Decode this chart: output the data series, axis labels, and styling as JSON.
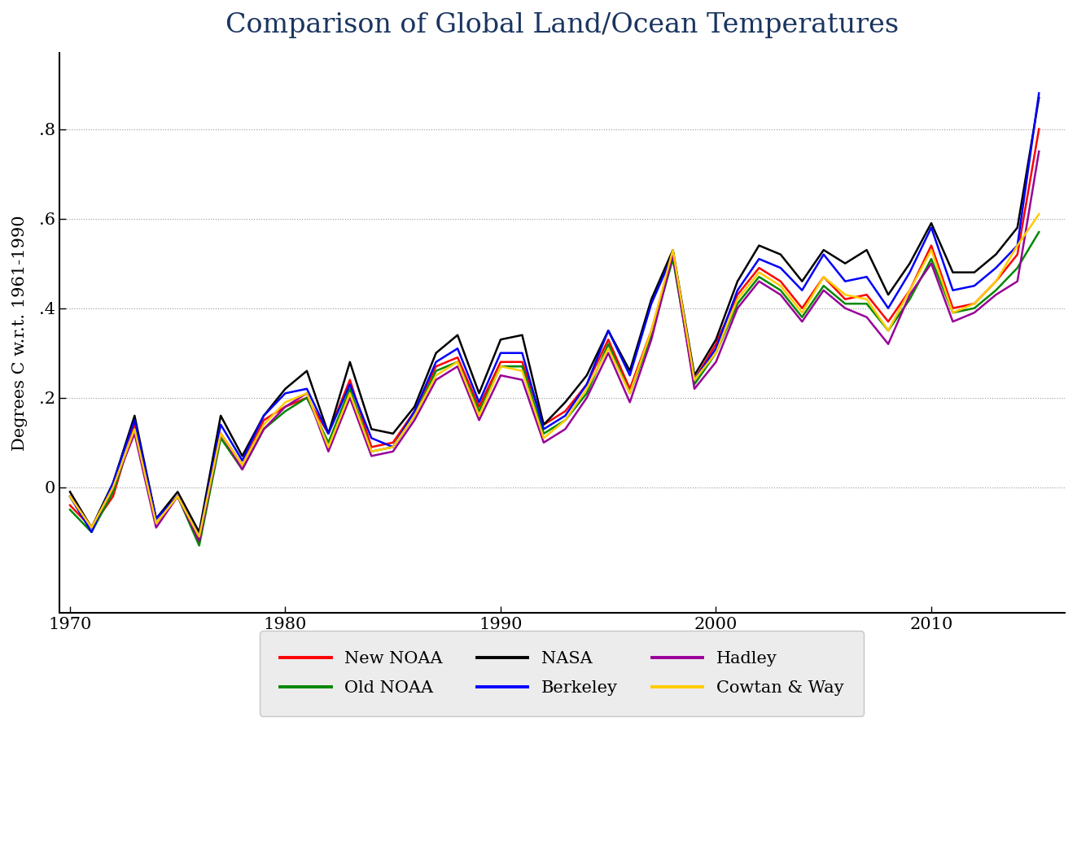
{
  "title": "Comparison of Global Land/Ocean Temperatures",
  "ylabel": "Degrees C w.r.t. 1961-1990",
  "years": [
    1970,
    1971,
    1972,
    1973,
    1974,
    1975,
    1976,
    1977,
    1978,
    1979,
    1980,
    1981,
    1982,
    1983,
    1984,
    1985,
    1986,
    1987,
    1988,
    1989,
    1990,
    1991,
    1992,
    1993,
    1994,
    1995,
    1996,
    1997,
    1998,
    1999,
    2000,
    2001,
    2002,
    2003,
    2004,
    2005,
    2006,
    2007,
    2008,
    2009,
    2010,
    2011,
    2012,
    2013,
    2014,
    2015
  ],
  "new_noaa": [
    -0.04,
    -0.09,
    -0.02,
    0.14,
    -0.07,
    -0.02,
    -0.12,
    0.12,
    0.05,
    0.15,
    0.18,
    0.2,
    0.12,
    0.24,
    0.09,
    0.1,
    0.17,
    0.27,
    0.29,
    0.18,
    0.28,
    0.28,
    0.14,
    0.17,
    0.23,
    0.33,
    0.22,
    0.35,
    0.52,
    0.24,
    0.32,
    0.43,
    0.49,
    0.46,
    0.4,
    0.47,
    0.42,
    0.43,
    0.37,
    0.44,
    0.54,
    0.4,
    0.41,
    0.46,
    0.52,
    0.8
  ],
  "old_noaa": [
    -0.05,
    -0.1,
    -0.01,
    0.13,
    -0.08,
    -0.02,
    -0.13,
    0.11,
    0.04,
    0.13,
    0.17,
    0.2,
    0.1,
    0.22,
    0.08,
    0.09,
    0.16,
    0.26,
    0.28,
    0.17,
    0.27,
    0.27,
    0.12,
    0.15,
    0.21,
    0.32,
    0.21,
    0.34,
    0.51,
    0.23,
    0.3,
    0.41,
    0.47,
    0.44,
    0.38,
    0.45,
    0.41,
    0.41,
    0.35,
    0.42,
    0.51,
    0.39,
    0.4,
    0.44,
    0.49,
    0.57
  ],
  "nasa": [
    -0.01,
    -0.09,
    0.01,
    0.16,
    -0.07,
    -0.01,
    -0.1,
    0.16,
    0.07,
    0.16,
    0.22,
    0.26,
    0.12,
    0.28,
    0.13,
    0.12,
    0.18,
    0.3,
    0.34,
    0.21,
    0.33,
    0.34,
    0.14,
    0.19,
    0.25,
    0.35,
    0.26,
    0.42,
    0.53,
    0.25,
    0.33,
    0.46,
    0.54,
    0.52,
    0.46,
    0.53,
    0.5,
    0.53,
    0.43,
    0.5,
    0.59,
    0.48,
    0.48,
    0.52,
    0.58,
    0.87
  ],
  "berkeley": [
    -0.02,
    -0.1,
    0.01,
    0.15,
    -0.07,
    -0.02,
    -0.11,
    0.14,
    0.06,
    0.16,
    0.21,
    0.22,
    0.12,
    0.23,
    0.11,
    0.09,
    0.17,
    0.28,
    0.31,
    0.19,
    0.3,
    0.3,
    0.13,
    0.16,
    0.23,
    0.35,
    0.25,
    0.41,
    0.52,
    0.24,
    0.31,
    0.44,
    0.51,
    0.49,
    0.44,
    0.52,
    0.46,
    0.47,
    0.4,
    0.48,
    0.58,
    0.44,
    0.45,
    0.49,
    0.54,
    0.88
  ],
  "hadley": [
    -0.02,
    -0.09,
    0.0,
    0.12,
    -0.09,
    -0.02,
    -0.12,
    0.12,
    0.04,
    0.13,
    0.18,
    0.21,
    0.08,
    0.2,
    0.07,
    0.08,
    0.15,
    0.24,
    0.27,
    0.15,
    0.25,
    0.24,
    0.1,
    0.13,
    0.2,
    0.3,
    0.19,
    0.33,
    0.52,
    0.22,
    0.28,
    0.4,
    0.46,
    0.43,
    0.37,
    0.44,
    0.4,
    0.38,
    0.32,
    0.43,
    0.5,
    0.37,
    0.39,
    0.43,
    0.46,
    0.75
  ],
  "cowtan_way": [
    -0.02,
    -0.09,
    0.0,
    0.13,
    -0.08,
    -0.02,
    -0.11,
    0.12,
    0.05,
    0.14,
    0.19,
    0.21,
    0.09,
    0.21,
    0.08,
    0.09,
    0.16,
    0.25,
    0.28,
    0.16,
    0.27,
    0.26,
    0.11,
    0.15,
    0.22,
    0.31,
    0.21,
    0.35,
    0.53,
    0.24,
    0.3,
    0.42,
    0.48,
    0.45,
    0.39,
    0.47,
    0.43,
    0.42,
    0.35,
    0.44,
    0.53,
    0.39,
    0.41,
    0.46,
    0.54,
    0.61
  ],
  "colors": {
    "new_noaa": "#ff0000",
    "old_noaa": "#008800",
    "nasa": "#000000",
    "berkeley": "#0000ff",
    "hadley": "#990099",
    "cowtan_way": "#ffcc00"
  },
  "linewidth": 1.8,
  "xlim": [
    1969.5,
    2016.2
  ],
  "ylim": [
    -0.28,
    0.97
  ],
  "yticks": [
    0.0,
    0.2,
    0.4,
    0.6,
    0.8
  ],
  "ytick_labels": [
    "0",
    ".2",
    ".4",
    ".6",
    ".8"
  ],
  "xticks": [
    1970,
    1980,
    1990,
    2000,
    2010
  ],
  "title_color": "#1a3560",
  "title_fontsize": 24,
  "ylabel_fontsize": 15,
  "tick_fontsize": 15,
  "legend_fontsize": 15,
  "legend_facecolor": "#e8e8e8",
  "legend_edgecolor": "#bbbbbb"
}
